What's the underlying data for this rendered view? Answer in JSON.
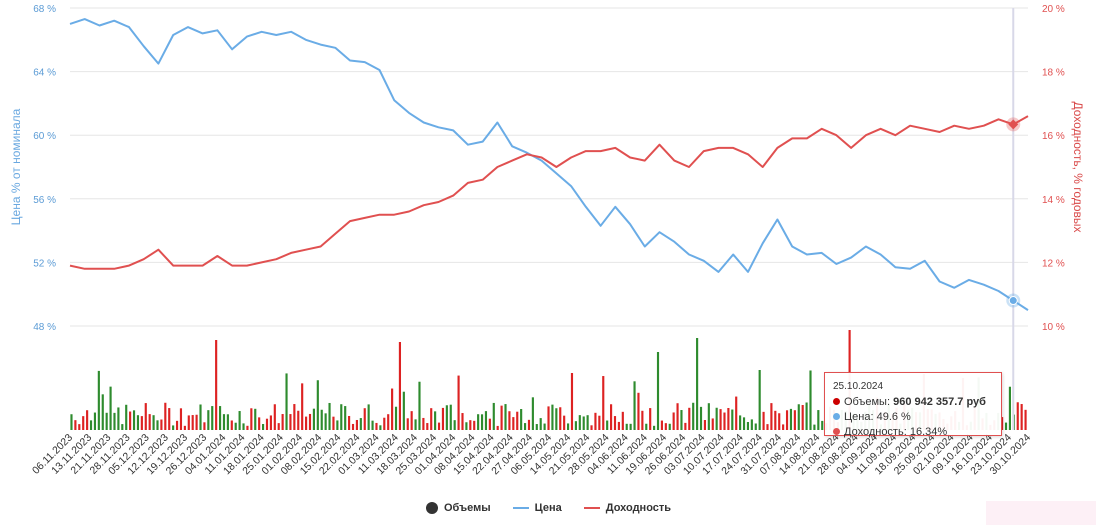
{
  "chart_data": {
    "type": "line",
    "y_left": {
      "label": "Цена % от номинала",
      "ticks": [
        "68 %",
        "64 %",
        "60 %",
        "56 %",
        "52 %",
        "48 %"
      ],
      "range": [
        48,
        68
      ]
    },
    "y_right": {
      "label": "Доходность, % годовых",
      "ticks": [
        "20 %",
        "18 %",
        "16 %",
        "14 %",
        "12 %",
        "10 %"
      ],
      "range": [
        10,
        20
      ]
    },
    "x_ticks": [
      "06.11.2023",
      "13.11.2023",
      "21.11.2023",
      "28.11.2023",
      "05.12.2023",
      "12.12.2023",
      "19.12.2023",
      "26.12.2023",
      "04.01.2024",
      "11.01.2024",
      "18.01.2024",
      "25.01.2024",
      "01.02.2024",
      "08.02.2024",
      "15.02.2024",
      "22.02.2024",
      "01.03.2024",
      "11.03.2024",
      "18.03.2024",
      "25.03.2024",
      "01.04.2024",
      "08.04.2024",
      "15.04.2024",
      "22.04.2024",
      "27.04.2024",
      "06.05.2024",
      "14.05.2024",
      "21.05.2024",
      "28.05.2024",
      "04.06.2024",
      "11.06.2024",
      "19.06.2024",
      "26.06.2024",
      "03.07.2024",
      "10.07.2024",
      "17.07.2024",
      "24.07.2024",
      "31.07.2024",
      "07.08.2024",
      "14.08.2024",
      "21.08.2024",
      "28.08.2024",
      "04.09.2024",
      "11.09.2024",
      "18.09.2024",
      "25.09.2024",
      "02.10.2024",
      "09.10.2024",
      "16.10.2024",
      "23.10.2024",
      "30.10.2024"
    ],
    "series": [
      {
        "name": "Цена",
        "color": "#6aace6",
        "axis": "left",
        "values": [
          67.0,
          67.3,
          66.9,
          67.2,
          66.8,
          65.6,
          64.5,
          66.3,
          66.8,
          66.4,
          66.6,
          65.4,
          66.2,
          66.5,
          66.3,
          66.5,
          66.0,
          65.7,
          65.5,
          64.7,
          64.6,
          64.1,
          62.2,
          61.4,
          60.8,
          60.5,
          60.3,
          59.4,
          59.6,
          60.8,
          59.3,
          58.9,
          58.4,
          57.6,
          56.8,
          55.5,
          54.3,
          55.5,
          54.4,
          53.0,
          53.9,
          53.3,
          52.5,
          52.1,
          51.4,
          52.5,
          51.4,
          53.2,
          54.7,
          53.0,
          52.5,
          52.6,
          51.9,
          52.3,
          53.0,
          52.5,
          51.7,
          51.6,
          52.1,
          50.8,
          50.4,
          50.9,
          50.6,
          50.2,
          49.6,
          49.0
        ]
      },
      {
        "name": "Доходность",
        "color": "#e05050",
        "axis": "right",
        "values": [
          11.9,
          11.8,
          11.8,
          11.8,
          11.9,
          12.1,
          12.4,
          11.9,
          11.9,
          11.9,
          12.2,
          11.9,
          11.9,
          12.0,
          12.1,
          12.3,
          12.4,
          12.5,
          12.9,
          13.3,
          13.4,
          13.5,
          13.5,
          13.6,
          13.8,
          13.9,
          14.1,
          14.5,
          14.6,
          15.0,
          15.2,
          15.4,
          15.3,
          15.0,
          15.3,
          15.5,
          15.5,
          15.6,
          15.3,
          15.2,
          15.7,
          15.2,
          15.0,
          15.5,
          15.6,
          15.6,
          15.4,
          15.0,
          15.6,
          15.9,
          15.9,
          16.2,
          16.0,
          15.6,
          16.0,
          16.2,
          16.0,
          16.3,
          16.2,
          16.1,
          16.3,
          16.2,
          16.3,
          16.5,
          16.34,
          16.6
        ]
      }
    ],
    "volume_series": {
      "name": "Объемы",
      "up_color": "#2e8b2e",
      "down_color": "#dd2222"
    },
    "legend": [
      "Объемы",
      "Цена",
      "Доходность"
    ],
    "tooltip": {
      "date": "25.10.2024",
      "volume_label": "Объемы:",
      "volume_value": "960 942 357.7 руб",
      "price_label": "Цена:",
      "price_value": "49.6 %",
      "yield_label": "Доходность:",
      "yield_value": "16.34%"
    }
  }
}
